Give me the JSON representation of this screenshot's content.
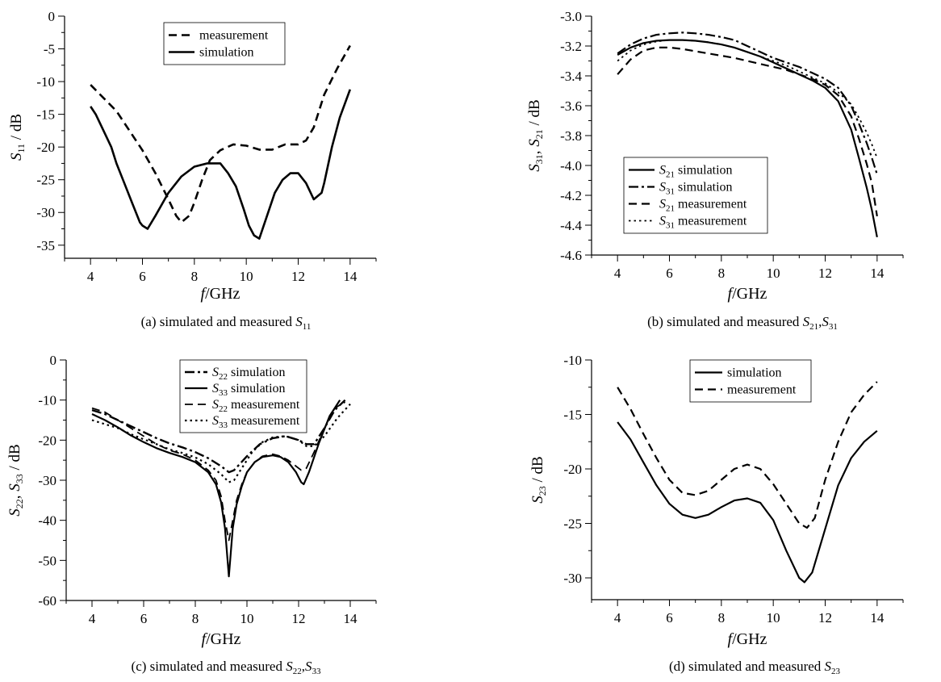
{
  "chart_data": [
    {
      "panel": "a",
      "type": "line",
      "caption": {
        "text": "(a) simulated and measured ",
        "sym": "S",
        "sub": "11"
      },
      "xlabel": "GHz",
      "ylabel": {
        "sym": "S",
        "sub": "11",
        "unit": " / dB"
      },
      "xlim": [
        3,
        15
      ],
      "ylim": [
        -37,
        0
      ],
      "xticks": [
        4,
        6,
        8,
        10,
        12,
        14
      ],
      "yticks": [
        0,
        -5,
        -10,
        -15,
        -20,
        -25,
        -30,
        -35
      ],
      "legend_position": "top-center",
      "series": [
        {
          "legend": {
            "sym": "",
            "sub": "",
            "text": "measurement"
          },
          "dash": "dashed",
          "width": 2.6,
          "x": [
            4,
            4.5,
            5,
            5.5,
            6,
            6.5,
            7,
            7.3,
            7.5,
            7.8,
            8,
            8.3,
            8.6,
            9,
            9.5,
            10,
            10.5,
            11,
            11.5,
            12,
            12.3,
            12.6,
            13,
            13.5,
            14
          ],
          "y": [
            -10.5,
            -12.5,
            -14.5,
            -17.5,
            -20.5,
            -24,
            -28,
            -30.5,
            -31.5,
            -30.5,
            -28.5,
            -25,
            -22,
            -20.5,
            -19.6,
            -19.8,
            -20.4,
            -20.4,
            -19.6,
            -19.6,
            -19,
            -17,
            -12,
            -8,
            -4.5
          ]
        },
        {
          "legend": {
            "sym": "",
            "sub": "",
            "text": "simulation"
          },
          "dash": "solid",
          "width": 2.6,
          "x": [
            4,
            4.2,
            4.5,
            4.8,
            5,
            5.3,
            5.6,
            5.9,
            6,
            6.2,
            6.5,
            7,
            7.5,
            8,
            8.5,
            9,
            9.3,
            9.6,
            9.9,
            10.1,
            10.3,
            10.5,
            10.8,
            11.1,
            11.4,
            11.7,
            12,
            12.3,
            12.6,
            12.9,
            13,
            13.3,
            13.6,
            14
          ],
          "y": [
            -13.8,
            -15,
            -17.5,
            -20,
            -22.5,
            -25.5,
            -28.5,
            -31.5,
            -32,
            -32.5,
            -30.5,
            -27,
            -24.5,
            -23,
            -22.5,
            -22.5,
            -24,
            -26,
            -29.5,
            -32,
            -33.5,
            -34,
            -30.5,
            -27,
            -25,
            -24,
            -24,
            -25.5,
            -28,
            -27,
            -25.5,
            -20,
            -15.5,
            -11.2
          ]
        }
      ]
    },
    {
      "panel": "b",
      "type": "line",
      "caption": {
        "text": "(b) simulated and measured ",
        "sym": "S",
        "sub": "21",
        "rest": ",",
        "sym2": "S",
        "sub2": "31"
      },
      "xlabel": "GHz",
      "ylabel": {
        "sym": "S",
        "sub": "31",
        "mid": ", ",
        "sym2": "S",
        "sub2": "21",
        "unit": " / dB"
      },
      "xlim": [
        3,
        15
      ],
      "ylim": [
        -4.6,
        -3.0
      ],
      "xticks": [
        4,
        6,
        8,
        10,
        12,
        14
      ],
      "yticks": [
        -3.0,
        -3.2,
        -3.4,
        -3.6,
        -3.8,
        -4.0,
        -4.2,
        -4.4,
        -4.6
      ],
      "decimals": 1,
      "legend_position": "bottom-left",
      "series": [
        {
          "legend": {
            "sym": "S",
            "sub": "21",
            "text": " simulation"
          },
          "dash": "solid",
          "width": 2.2,
          "x": [
            4,
            4.5,
            5,
            5.5,
            6,
            6.5,
            7,
            7.5,
            8,
            8.5,
            9,
            9.5,
            10,
            10.5,
            11,
            11.5,
            12,
            12.5,
            13,
            13.3,
            13.6,
            13.8,
            14
          ],
          "y": [
            -3.26,
            -3.21,
            -3.18,
            -3.165,
            -3.16,
            -3.16,
            -3.165,
            -3.175,
            -3.19,
            -3.21,
            -3.24,
            -3.27,
            -3.31,
            -3.35,
            -3.39,
            -3.43,
            -3.48,
            -3.57,
            -3.76,
            -3.95,
            -4.15,
            -4.3,
            -4.48
          ]
        },
        {
          "legend": {
            "sym": "S",
            "sub": "31",
            "text": " simulation"
          },
          "dash": "dashdot",
          "width": 2.2,
          "x": [
            4,
            4.5,
            5,
            5.5,
            6,
            6.5,
            7,
            7.5,
            8,
            8.5,
            9,
            9.5,
            10,
            10.5,
            11,
            11.5,
            12,
            12.5,
            13,
            13.3,
            13.6,
            13.8,
            14
          ],
          "y": [
            -3.25,
            -3.19,
            -3.15,
            -3.125,
            -3.115,
            -3.11,
            -3.115,
            -3.125,
            -3.14,
            -3.16,
            -3.2,
            -3.24,
            -3.28,
            -3.31,
            -3.34,
            -3.38,
            -3.42,
            -3.48,
            -3.6,
            -3.72,
            -3.85,
            -3.95,
            -4.06
          ]
        },
        {
          "legend": {
            "sym": "S",
            "sub": "21",
            "text": " measurement"
          },
          "dash": "dashed",
          "width": 2.2,
          "x": [
            4,
            4.5,
            5,
            5.5,
            6,
            6.5,
            7,
            7.5,
            8,
            8.5,
            9,
            9.5,
            10,
            10.5,
            11,
            11.5,
            12,
            12.5,
            13,
            13.3,
            13.6,
            13.8,
            14
          ],
          "y": [
            -3.39,
            -3.29,
            -3.23,
            -3.21,
            -3.21,
            -3.22,
            -3.235,
            -3.25,
            -3.265,
            -3.28,
            -3.3,
            -3.32,
            -3.34,
            -3.36,
            -3.39,
            -3.42,
            -3.46,
            -3.53,
            -3.67,
            -3.82,
            -3.99,
            -4.12,
            -4.34
          ]
        },
        {
          "legend": {
            "sym": "S",
            "sub": "31",
            "text": " measurement"
          },
          "dash": "dotted",
          "width": 1.8,
          "x": [
            4,
            4.5,
            5,
            5.5,
            6,
            6.5,
            7,
            7.5,
            8,
            8.5,
            9,
            9.5,
            10,
            10.5,
            11,
            11.5,
            12,
            12.5,
            13,
            13.3,
            13.6,
            13.8,
            14
          ],
          "y": [
            -3.3,
            -3.23,
            -3.19,
            -3.17,
            -3.16,
            -3.16,
            -3.165,
            -3.175,
            -3.19,
            -3.21,
            -3.24,
            -3.27,
            -3.3,
            -3.33,
            -3.37,
            -3.41,
            -3.45,
            -3.51,
            -3.59,
            -3.68,
            -3.78,
            -3.86,
            -3.95
          ]
        }
      ]
    },
    {
      "panel": "c",
      "type": "line",
      "caption": {
        "text": "(c) simulated and measured ",
        "sym": "S",
        "sub": "22",
        "rest": ",",
        "sym2": "S",
        "sub2": "33"
      },
      "xlabel": "GHz",
      "ylabel": {
        "sym": "S",
        "sub": "22",
        "mid": ", ",
        "sym2": "S",
        "sub2": "33",
        "unit": " / dB"
      },
      "xlim": [
        3,
        15
      ],
      "ylim": [
        -60,
        0
      ],
      "xticks": [
        4,
        6,
        8,
        10,
        12,
        14
      ],
      "yticks": [
        0,
        -10,
        -20,
        -30,
        -40,
        -50,
        -60
      ],
      "legend_position": "top-center",
      "series": [
        {
          "legend": {
            "sym": "S",
            "sub": "22",
            "text": " simulation"
          },
          "dash": "dashdot",
          "width": 2.4,
          "x": [
            4,
            4.5,
            5,
            5.5,
            6,
            6.5,
            7,
            7.5,
            8,
            8.5,
            9,
            9.3,
            9.5,
            10,
            10.5,
            11,
            11.5,
            12,
            12.3,
            12.6,
            13,
            13.4,
            13.8
          ],
          "y": [
            -12.5,
            -13.5,
            -15,
            -16.5,
            -18,
            -19.5,
            -20.8,
            -21.8,
            -23,
            -24.5,
            -26.5,
            -28,
            -27.5,
            -24,
            -21,
            -19.5,
            -19,
            -20,
            -21,
            -21,
            -17,
            -12.5,
            -10
          ]
        },
        {
          "legend": {
            "sym": "S",
            "sub": "33",
            "text": " simulation"
          },
          "dash": "solid",
          "width": 2.2,
          "x": [
            4,
            4.5,
            5,
            5.5,
            6,
            6.5,
            7,
            7.5,
            8,
            8.5,
            8.8,
            9,
            9.15,
            9.25,
            9.3,
            9.35,
            9.45,
            9.6,
            9.8,
            10,
            10.3,
            10.6,
            11,
            11.3,
            11.6,
            11.9,
            12.1,
            12.2,
            12.4,
            12.8,
            13.2,
            13.6
          ],
          "y": [
            -13.5,
            -15,
            -16.8,
            -18.8,
            -20.5,
            -22,
            -23.2,
            -24.2,
            -25.5,
            -28,
            -31,
            -35.5,
            -42,
            -50,
            -54,
            -50,
            -42,
            -36,
            -31.5,
            -28,
            -25.5,
            -24.2,
            -23.8,
            -24.2,
            -25.5,
            -28,
            -30.5,
            -31,
            -28,
            -20.5,
            -14,
            -10
          ]
        },
        {
          "legend": {
            "sym": "S",
            "sub": "22",
            "text": " measurement"
          },
          "dash": "dashed",
          "width": 1.8,
          "x": [
            4,
            4.5,
            5,
            5.5,
            6,
            6.5,
            7,
            7.5,
            8,
            8.5,
            8.8,
            9,
            9.15,
            9.3,
            9.45,
            9.6,
            9.8,
            10,
            10.3,
            10.6,
            11,
            11.3,
            11.6,
            11.9,
            12.1,
            12.3,
            12.6,
            13,
            13.4,
            13.8
          ],
          "y": [
            -12,
            -13,
            -15,
            -17,
            -19,
            -21,
            -22.5,
            -23.5,
            -25,
            -27.5,
            -30,
            -34,
            -40,
            -45,
            -40,
            -35,
            -31,
            -28,
            -25.5,
            -24,
            -23.5,
            -24,
            -25,
            -26.5,
            -27.5,
            -27,
            -23,
            -17,
            -12,
            -10.5
          ]
        },
        {
          "legend": {
            "sym": "S",
            "sub": "33",
            "text": " measurement"
          },
          "dash": "dotted",
          "width": 2.2,
          "x": [
            4,
            4.5,
            5,
            5.5,
            6,
            6.5,
            7,
            7.5,
            8,
            8.5,
            9,
            9.3,
            9.5,
            9.8,
            10.2,
            10.6,
            11,
            11.5,
            12,
            12.3,
            12.6,
            13,
            13.5,
            14
          ],
          "y": [
            -15,
            -16,
            -17,
            -18.5,
            -19.8,
            -21,
            -22.3,
            -23.2,
            -24.3,
            -26,
            -28.5,
            -30.5,
            -30,
            -27,
            -23,
            -20.5,
            -19.3,
            -19,
            -20,
            -21.5,
            -21.5,
            -19,
            -14.5,
            -11
          ]
        }
      ]
    },
    {
      "panel": "d",
      "type": "line",
      "caption": {
        "text": "(d) simulated and measured ",
        "sym": "S",
        "sub": "23"
      },
      "xlabel": "GHz",
      "ylabel": {
        "sym": "S",
        "sub": "23",
        "unit": " / dB"
      },
      "xlim": [
        3,
        15
      ],
      "ylim": [
        -32,
        -10
      ],
      "xticks": [
        4,
        6,
        8,
        10,
        12,
        14
      ],
      "yticks": [
        -10,
        -15,
        -20,
        -25,
        -30
      ],
      "legend_position": "top-left",
      "series": [
        {
          "legend": {
            "sym": "",
            "sub": "",
            "text": "simulation"
          },
          "dash": "solid",
          "width": 2.2,
          "x": [
            4,
            4.5,
            5,
            5.5,
            6,
            6.5,
            7,
            7.5,
            8,
            8.5,
            9,
            9.5,
            10,
            10.5,
            11,
            11.2,
            11.5,
            12,
            12.5,
            13,
            13.5,
            14
          ],
          "y": [
            -15.7,
            -17.3,
            -19.4,
            -21.5,
            -23.2,
            -24.2,
            -24.5,
            -24.2,
            -23.5,
            -22.9,
            -22.7,
            -23.1,
            -24.7,
            -27.5,
            -30,
            -30.4,
            -29.5,
            -25.5,
            -21.5,
            -19,
            -17.5,
            -16.5
          ]
        },
        {
          "legend": {
            "sym": "",
            "sub": "",
            "text": "measurement"
          },
          "dash": "dashed",
          "width": 2.2,
          "x": [
            4,
            4.5,
            5,
            5.5,
            6,
            6.5,
            7,
            7.5,
            8,
            8.5,
            9,
            9.5,
            10,
            10.5,
            11,
            11.3,
            11.6,
            12,
            12.5,
            13,
            13.5,
            14
          ],
          "y": [
            -12.5,
            -14.5,
            -16.8,
            -19,
            -21,
            -22.2,
            -22.4,
            -22,
            -21,
            -20,
            -19.6,
            -20,
            -21.4,
            -23.2,
            -25,
            -25.4,
            -24.5,
            -21,
            -17.5,
            -14.8,
            -13.2,
            -12
          ]
        }
      ]
    }
  ]
}
